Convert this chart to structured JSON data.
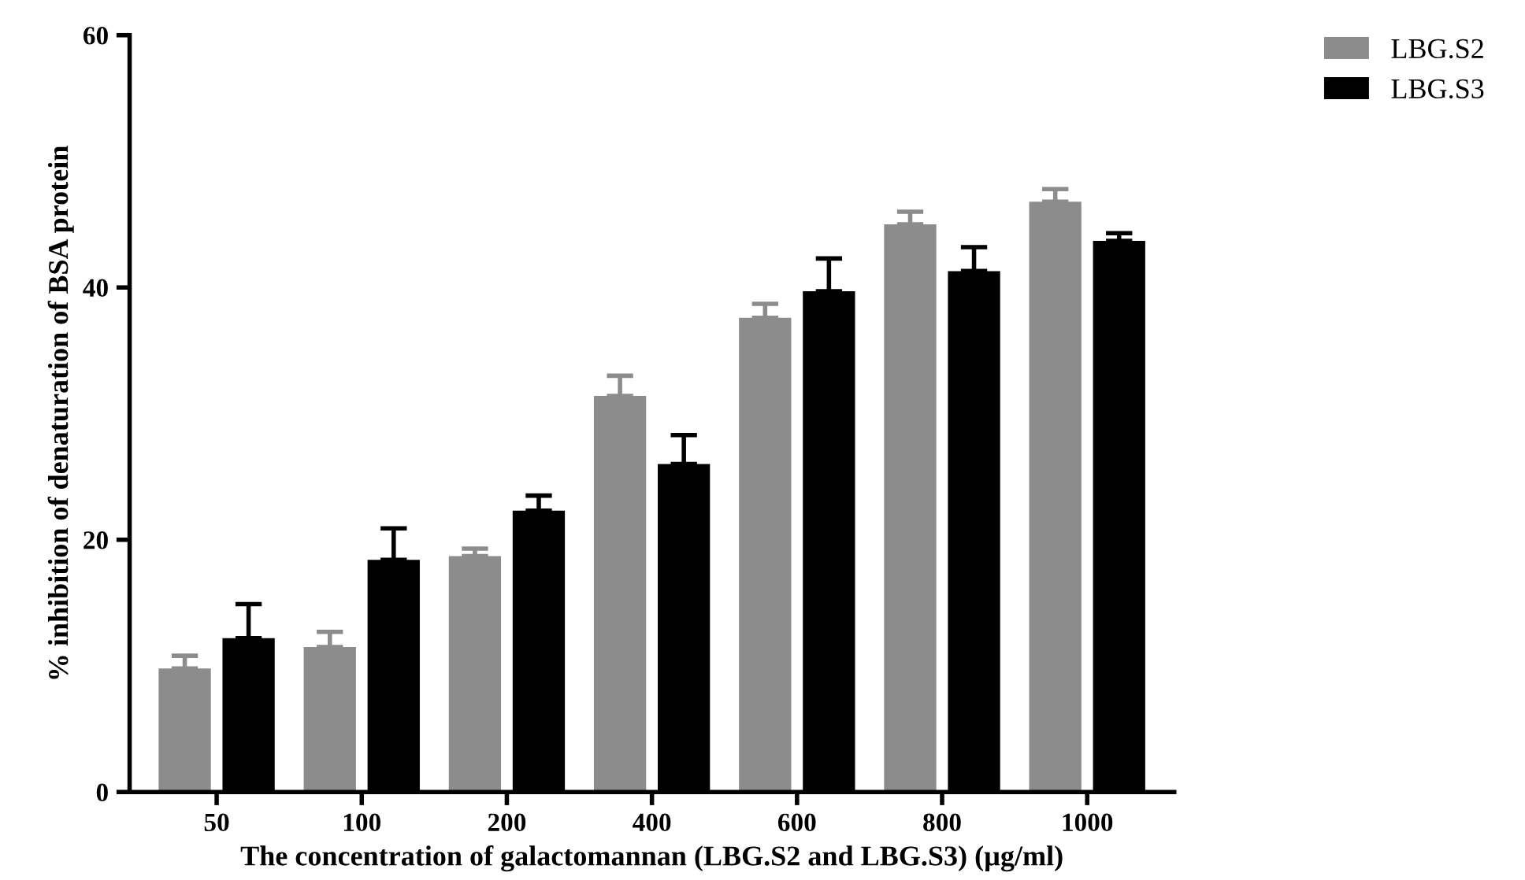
{
  "chart_data": {
    "type": "bar",
    "xlabel": "The concentration of galactomannan (LBG.S2 and LBG.S3) (µg/ml)",
    "ylabel": "% inhibition of denaturation of BSA protein",
    "categories": [
      "50",
      "100",
      "200",
      "400",
      "600",
      "800",
      "1000"
    ],
    "series": [
      {
        "name": "LBG.S2",
        "color": "#8c8c8c",
        "values": [
          9.8,
          11.5,
          18.7,
          31.4,
          37.6,
          45.0,
          46.8
        ],
        "errors": [
          [
            9.8,
            10.8
          ],
          [
            11.5,
            12.7
          ],
          [
            18.7,
            19.3
          ],
          [
            31.4,
            33.0
          ],
          [
            37.6,
            38.7
          ],
          [
            45.0,
            46.0
          ],
          [
            46.8,
            47.8
          ]
        ]
      },
      {
        "name": "LBG.S3",
        "color": "#000000",
        "values": [
          12.2,
          18.4,
          22.3,
          26.0,
          39.7,
          41.3,
          43.7
        ],
        "errors": [
          [
            12.2,
            14.9
          ],
          [
            18.4,
            20.9
          ],
          [
            22.3,
            23.5
          ],
          [
            26.0,
            28.3
          ],
          [
            39.7,
            42.3
          ],
          [
            41.3,
            43.2
          ],
          [
            43.7,
            44.3
          ]
        ]
      }
    ],
    "ylim": [
      0,
      60
    ],
    "yticks": [
      0,
      20,
      40,
      60
    ],
    "grid": false,
    "legend": "top right"
  }
}
